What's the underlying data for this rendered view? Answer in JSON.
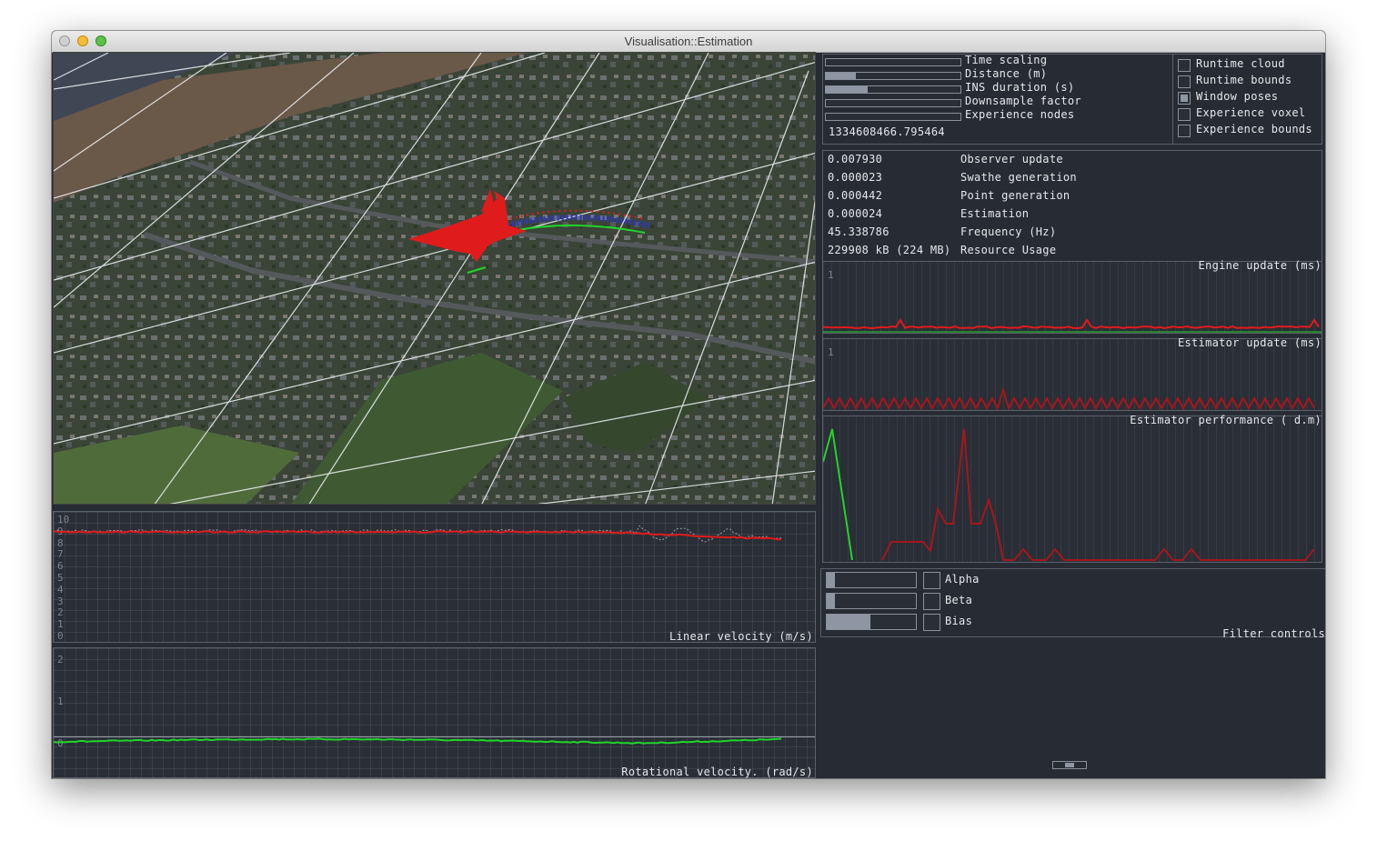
{
  "window": {
    "title": "Visualisation::Estimation"
  },
  "render_controls": {
    "sliders": [
      {
        "label": "Time scaling",
        "value": 0
      },
      {
        "label": "Distance (m)",
        "value": 0.22
      },
      {
        "label": "INS duration (s)",
        "value": 0.31
      },
      {
        "label": "Downsample factor",
        "value": 0
      },
      {
        "label": "Experience nodes",
        "value": 0
      }
    ],
    "timestamp": "1334608466.795464",
    "checkboxes": [
      {
        "label": "Runtime cloud",
        "checked": false
      },
      {
        "label": "Runtime bounds",
        "checked": false
      },
      {
        "label": "Window poses",
        "checked": true
      },
      {
        "label": "Experience voxel",
        "checked": false
      },
      {
        "label": "Experience bounds",
        "checked": false
      }
    ]
  },
  "timings": [
    {
      "value": "0.007930",
      "label": "Observer update"
    },
    {
      "value": "0.000023",
      "label": "Swathe generation"
    },
    {
      "value": "0.000442",
      "label": "Point generation"
    },
    {
      "value": "0.000024",
      "label": "Estimation"
    },
    {
      "value": "45.338786",
      "label": "Frequency (Hz)"
    },
    {
      "value": "229908 kB (224 MB)",
      "label": "Resource Usage"
    }
  ],
  "graphs": {
    "engine": {
      "title": "Engine update (ms)",
      "ytick": "1"
    },
    "estimator": {
      "title": "Estimator update (ms)",
      "ytick": "1"
    },
    "performance": {
      "title": "Estimator performance ( d.m)"
    },
    "linear": {
      "title": "Linear velocity (m/s)",
      "yticks": [
        "10",
        "9",
        "8",
        "7",
        "6",
        "5",
        "4",
        "3",
        "2",
        "1",
        "0"
      ]
    },
    "rotational": {
      "title": "Rotational velocity. (rad/s)",
      "yticks": [
        "2",
        "1",
        "0"
      ]
    }
  },
  "filter": {
    "title": "Filter controls",
    "items": [
      {
        "label": "Alpha",
        "value": 0.09
      },
      {
        "label": "Beta",
        "value": 0.09
      },
      {
        "label": "Bias",
        "value": 0.49
      }
    ]
  },
  "colors": {
    "background": "#272b33",
    "border": "#5a606b",
    "trace_red": "#e01b1b",
    "trace_dark_red": "#a5161c",
    "trace_green": "#22d42a",
    "trace_grey": "#9aa0a8"
  }
}
